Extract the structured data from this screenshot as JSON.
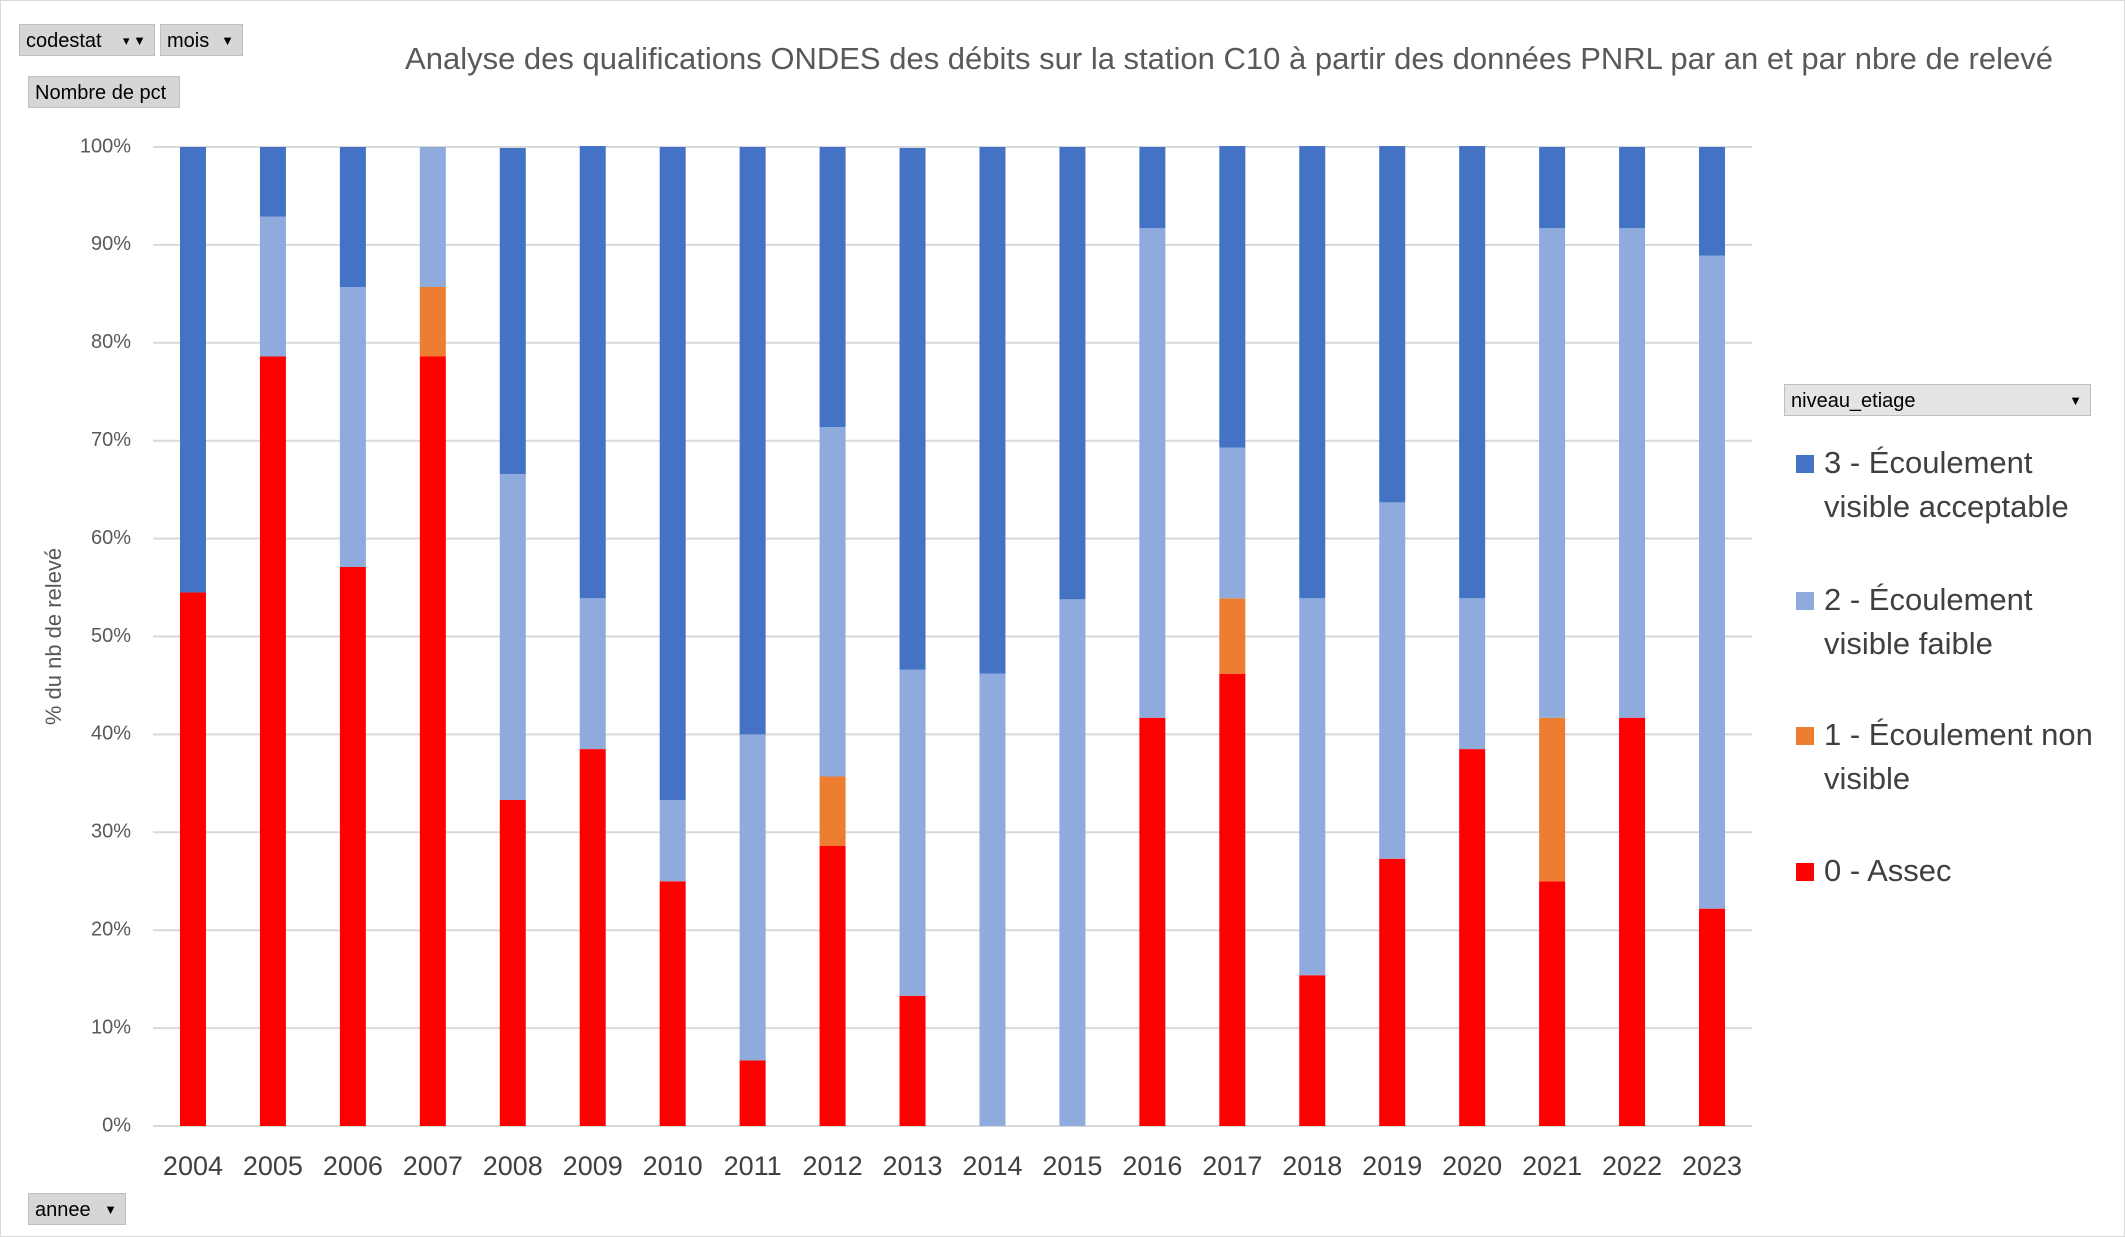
{
  "controls": {
    "filters": [
      "codestat",
      "mois"
    ],
    "value_field": "Nombre de pct",
    "row_field": "annee"
  },
  "chart_data": {
    "type": "stacked_bar",
    "title": "Analyse des qualifications ONDES des débits sur la station C10  à partir des données PNRL par an et par nbre de relevé",
    "y_label": "% du nb de relevé",
    "legend_title": "niveau_etiage",
    "legend": "right",
    "grid": true,
    "categories": [
      "2004",
      "2005",
      "2006",
      "2007",
      "2008",
      "2009",
      "2010",
      "2011",
      "2012",
      "2013",
      "2014",
      "2015",
      "2016",
      "2017",
      "2018",
      "2019",
      "2020",
      "2021",
      "2022",
      "2023"
    ],
    "ylim": [
      0,
      100
    ],
    "yticks": [
      {
        "value": 0,
        "label": "0%"
      },
      {
        "value": 10,
        "label": "10%"
      },
      {
        "value": 20,
        "label": "20%"
      },
      {
        "value": 30,
        "label": "30%"
      },
      {
        "value": 40,
        "label": "40%"
      },
      {
        "value": 50,
        "label": "50%"
      },
      {
        "value": 60,
        "label": "60%"
      },
      {
        "value": 70,
        "label": "70%"
      },
      {
        "value": 80,
        "label": "80%"
      },
      {
        "value": 90,
        "label": "90%"
      },
      {
        "value": 100,
        "label": "100%"
      }
    ],
    "series": [
      {
        "name": "0 - Assec",
        "color": "#ff0000",
        "values": [
          54.5,
          78.6,
          57.1,
          78.6,
          33.3,
          38.5,
          25,
          6.7,
          28.6,
          13.3,
          0,
          0,
          41.7,
          46.2,
          15.4,
          27.3,
          38.5,
          25,
          41.7,
          22.2
        ]
      },
      {
        "name": "1 - Écoulement non visible",
        "color": "#ed7d31",
        "values": [
          0,
          0,
          0,
          7.1,
          0,
          0,
          0,
          0,
          7.1,
          0,
          0,
          0,
          0,
          7.7,
          0,
          0,
          0,
          16.7,
          0,
          0
        ]
      },
      {
        "name": "2 - Écoulement visible faible",
        "color": "#8faadc",
        "values": [
          0,
          14.3,
          28.6,
          14.3,
          33.3,
          15.4,
          8.3,
          33.3,
          35.7,
          33.3,
          46.2,
          53.8,
          50,
          15.4,
          38.5,
          36.4,
          15.4,
          50,
          50,
          66.7
        ]
      },
      {
        "name": "3 - Écoulement visible acceptable",
        "color": "#4472c4",
        "values": [
          45.5,
          7.1,
          14.3,
          0,
          33.3,
          46.2,
          66.7,
          60,
          28.6,
          53.3,
          53.8,
          46.2,
          8.3,
          30.8,
          46.2,
          36.4,
          46.2,
          8.3,
          8.3,
          11.1
        ]
      }
    ]
  }
}
